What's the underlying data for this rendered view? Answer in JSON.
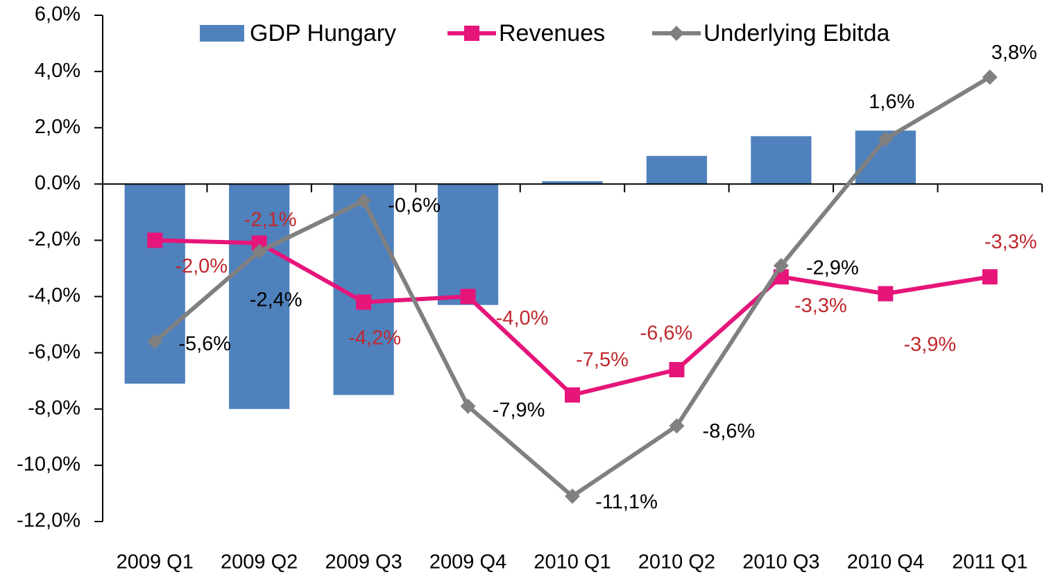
{
  "chart_data": {
    "type": "bar-line",
    "categories": [
      "2009 Q1",
      "2009 Q2",
      "2009 Q3",
      "2009 Q4",
      "2010 Q1",
      "2010 Q2",
      "2010 Q3",
      "2010 Q4",
      "2011 Q1"
    ],
    "series": [
      {
        "name": "GDP Hungary",
        "type": "bar",
        "color": "#4f81bd",
        "values": [
          -7.1,
          -8.0,
          -7.5,
          -4.3,
          0.1,
          1.0,
          1.7,
          1.9,
          null
        ]
      },
      {
        "name": "Revenues",
        "type": "line",
        "marker": "square",
        "color": "#e6157a",
        "label_color": "#c0282d",
        "values": [
          -2.0,
          -2.1,
          -4.2,
          -4.0,
          -7.5,
          -6.6,
          -3.3,
          -3.9,
          -3.3
        ],
        "value_labels": [
          "-2,0%",
          "-2,1%",
          "-4,2%",
          "-4,0%",
          "-7,5%",
          "-6,6%",
          "-3,3%",
          "-3,9%",
          "-3,3%"
        ]
      },
      {
        "name": "Underlying Ebitda",
        "type": "line",
        "marker": "diamond",
        "color": "#808080",
        "label_color": "#000000",
        "values": [
          -5.6,
          -2.4,
          -0.6,
          -7.9,
          -11.1,
          -8.6,
          -2.9,
          1.6,
          3.8
        ],
        "value_labels": [
          "-5,6%",
          "-2,4%",
          "-0,6%",
          "-7,9%",
          "-11,1%",
          "-8,6%",
          "-2,9%",
          "1,6%",
          "3,8%"
        ]
      }
    ],
    "ylim": [
      -12,
      6
    ],
    "yticks": [
      {
        "value": 6,
        "label": "6,0%"
      },
      {
        "value": 4,
        "label": "4,0%"
      },
      {
        "value": 2,
        "label": "2,0%"
      },
      {
        "value": 0,
        "label": "0.0%"
      },
      {
        "value": -2,
        "label": "-2,0%"
      },
      {
        "value": -4,
        "label": "-4,0%"
      },
      {
        "value": -6,
        "label": "-6,0%"
      },
      {
        "value": -8,
        "label": "-8,0%"
      },
      {
        "value": -10,
        "label": "-10,0%"
      },
      {
        "value": -12,
        "label": "-12,0%"
      }
    ],
    "legend": "top"
  }
}
